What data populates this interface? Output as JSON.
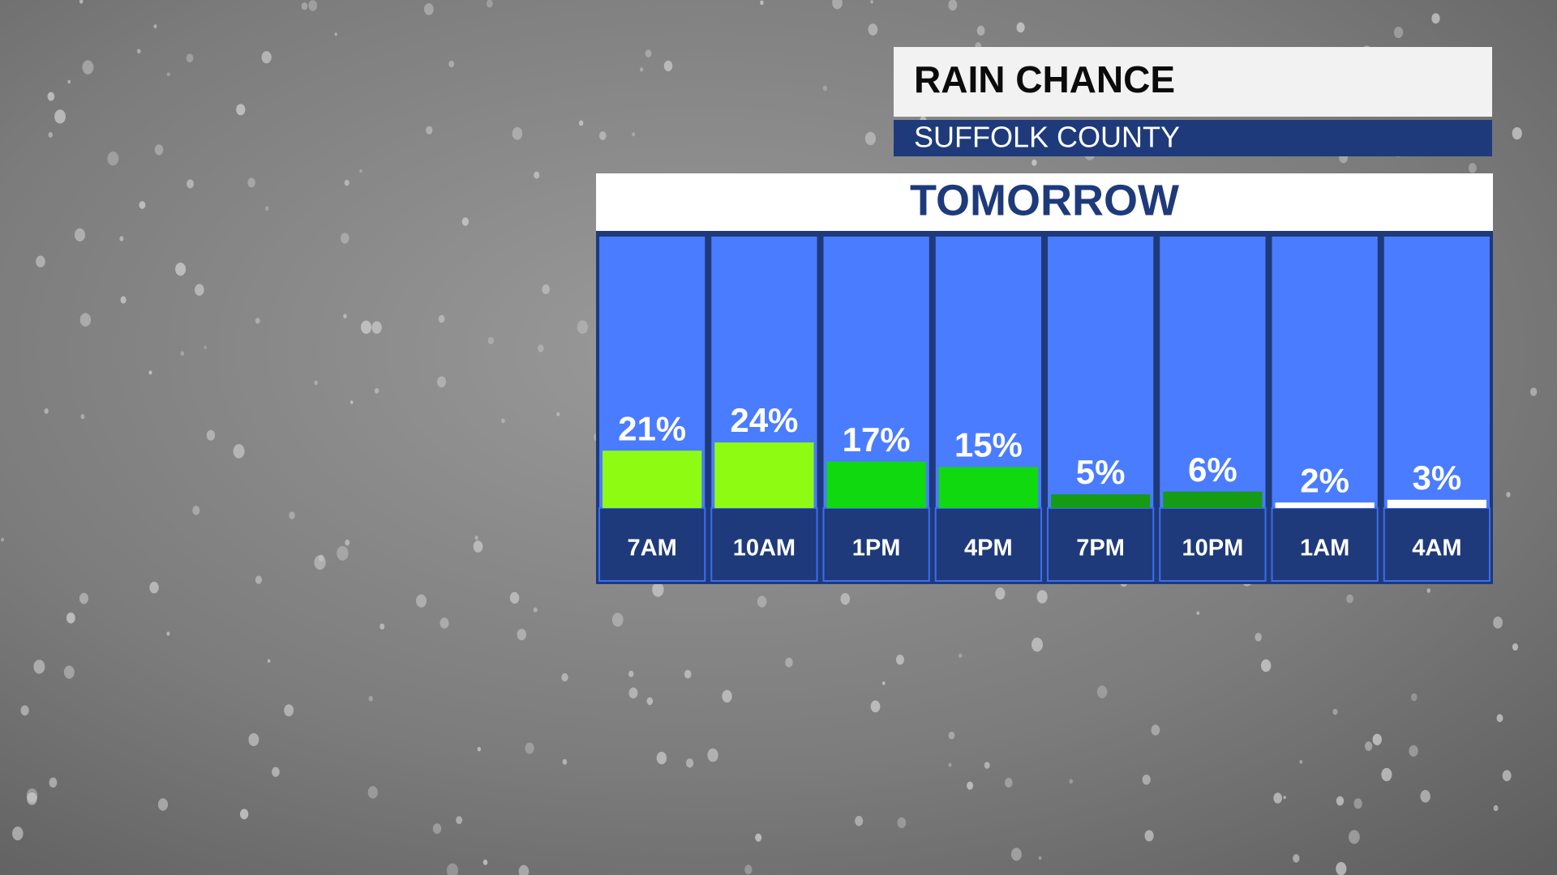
{
  "chart_data": {
    "type": "bar",
    "title": "RAIN CHANCE",
    "subtitle": "SUFFOLK COUNTY",
    "period": "TOMORROW",
    "categories": [
      "7AM",
      "10AM",
      "1PM",
      "4PM",
      "7PM",
      "10PM",
      "1AM",
      "4AM"
    ],
    "values": [
      21,
      24,
      17,
      15,
      5,
      6,
      2,
      3
    ],
    "value_labels": [
      "21%",
      "24%",
      "17%",
      "15%",
      "5%",
      "6%",
      "2%",
      "3%"
    ],
    "colors": [
      "#8efc12",
      "#8efc12",
      "#10d910",
      "#10d910",
      "#169b16",
      "#169b16",
      "#ffffff",
      "#ffffff"
    ],
    "ylim": [
      0,
      100
    ]
  }
}
